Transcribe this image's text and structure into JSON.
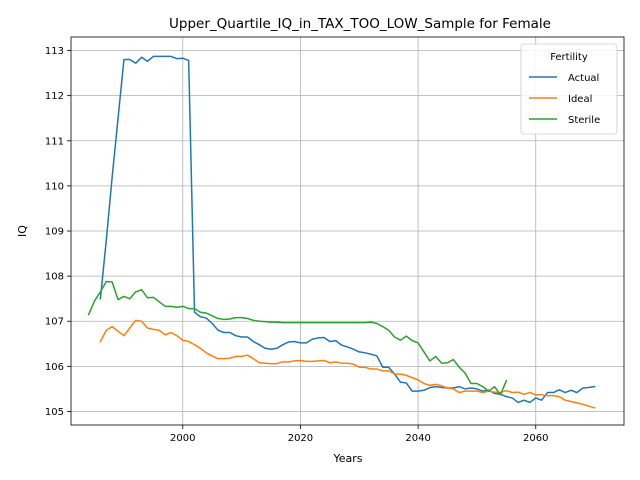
{
  "chart_data": {
    "type": "line",
    "title": "Upper_Quartile_IQ_in_TAX_TOO_LOW_Sample for Female",
    "xlabel": "Years",
    "ylabel": "IQ",
    "xlim": [
      1981,
      2075
    ],
    "ylim": [
      104.7,
      113.3
    ],
    "xticks": [
      1980,
      2000,
      2020,
      2040,
      2060
    ],
    "yticks": [
      105,
      106,
      107,
      108,
      109,
      110,
      111,
      112,
      113
    ],
    "grid": true,
    "legend": {
      "title": "Fertility",
      "placement": "top-right"
    },
    "series": [
      {
        "name": "Actual",
        "color": "#1f77b4",
        "points": [
          [
            1986,
            107.5
          ],
          [
            1987,
            108.8
          ],
          [
            1988,
            110.2
          ],
          [
            1989,
            111.5
          ],
          [
            1990,
            112.8
          ],
          [
            1991,
            112.8
          ],
          [
            1992,
            112.72
          ],
          [
            1993,
            112.85
          ],
          [
            1994,
            112.76
          ],
          [
            1995,
            112.87
          ],
          [
            1996,
            112.87
          ],
          [
            1997,
            112.87
          ],
          [
            1998,
            112.87
          ],
          [
            1999,
            112.82
          ],
          [
            2000,
            112.83
          ],
          [
            2001,
            112.78
          ],
          [
            2002,
            107.2
          ],
          [
            2003,
            107.1
          ],
          [
            2004,
            107.07
          ],
          [
            2005,
            106.95
          ],
          [
            2006,
            106.8
          ],
          [
            2007,
            106.75
          ],
          [
            2008,
            106.75
          ],
          [
            2009,
            106.68
          ],
          [
            2010,
            106.65
          ],
          [
            2011,
            106.65
          ],
          [
            2012,
            106.55
          ],
          [
            2013,
            106.48
          ],
          [
            2014,
            106.4
          ],
          [
            2015,
            106.38
          ],
          [
            2016,
            106.4
          ],
          [
            2017,
            106.48
          ],
          [
            2018,
            106.54
          ],
          [
            2019,
            106.55
          ],
          [
            2020,
            106.52
          ],
          [
            2021,
            106.52
          ],
          [
            2022,
            106.6
          ],
          [
            2023,
            106.63
          ],
          [
            2024,
            106.64
          ],
          [
            2025,
            106.55
          ],
          [
            2026,
            106.57
          ],
          [
            2027,
            106.47
          ],
          [
            2028,
            106.43
          ],
          [
            2029,
            106.38
          ],
          [
            2030,
            106.32
          ],
          [
            2031,
            106.3
          ],
          [
            2032,
            106.27
          ],
          [
            2033,
            106.23
          ],
          [
            2034,
            105.98
          ],
          [
            2035,
            105.98
          ],
          [
            2036,
            105.83
          ],
          [
            2037,
            105.65
          ],
          [
            2038,
            105.63
          ],
          [
            2039,
            105.45
          ],
          [
            2040,
            105.45
          ],
          [
            2041,
            105.47
          ],
          [
            2042,
            105.53
          ],
          [
            2043,
            105.55
          ],
          [
            2044,
            105.53
          ],
          [
            2045,
            105.52
          ],
          [
            2046,
            105.52
          ],
          [
            2047,
            105.55
          ],
          [
            2048,
            105.5
          ],
          [
            2049,
            105.52
          ],
          [
            2050,
            105.5
          ],
          [
            2051,
            105.45
          ],
          [
            2052,
            105.47
          ],
          [
            2053,
            105.4
          ],
          [
            2054,
            105.38
          ],
          [
            2055,
            105.33
          ],
          [
            2056,
            105.3
          ],
          [
            2057,
            105.2
          ],
          [
            2058,
            105.25
          ],
          [
            2059,
            105.2
          ],
          [
            2060,
            105.3
          ],
          [
            2061,
            105.25
          ],
          [
            2062,
            105.42
          ],
          [
            2063,
            105.42
          ],
          [
            2064,
            105.48
          ],
          [
            2065,
            105.42
          ],
          [
            2066,
            105.47
          ],
          [
            2067,
            105.42
          ],
          [
            2068,
            105.52
          ],
          [
            2069,
            105.53
          ],
          [
            2070,
            105.55
          ]
        ]
      },
      {
        "name": "Ideal",
        "color": "#ff7f0e",
        "points": [
          [
            1986,
            106.55
          ],
          [
            1987,
            106.8
          ],
          [
            1988,
            106.88
          ],
          [
            1989,
            106.78
          ],
          [
            1990,
            106.68
          ],
          [
            1991,
            106.85
          ],
          [
            1992,
            107.02
          ],
          [
            1993,
            107.0
          ],
          [
            1994,
            106.85
          ],
          [
            1995,
            106.82
          ],
          [
            1996,
            106.8
          ],
          [
            1997,
            106.7
          ],
          [
            1998,
            106.75
          ],
          [
            1999,
            106.68
          ],
          [
            2000,
            106.58
          ],
          [
            2001,
            106.55
          ],
          [
            2002,
            106.48
          ],
          [
            2003,
            106.4
          ],
          [
            2004,
            106.3
          ],
          [
            2005,
            106.23
          ],
          [
            2006,
            106.17
          ],
          [
            2007,
            106.17
          ],
          [
            2008,
            106.18
          ],
          [
            2009,
            106.22
          ],
          [
            2010,
            106.22
          ],
          [
            2011,
            106.25
          ],
          [
            2012,
            106.17
          ],
          [
            2013,
            106.08
          ],
          [
            2014,
            106.07
          ],
          [
            2015,
            106.06
          ],
          [
            2016,
            106.06
          ],
          [
            2017,
            106.1
          ],
          [
            2018,
            106.1
          ],
          [
            2019,
            106.12
          ],
          [
            2020,
            106.13
          ],
          [
            2021,
            106.11
          ],
          [
            2022,
            106.11
          ],
          [
            2023,
            106.12
          ],
          [
            2024,
            106.13
          ],
          [
            2025,
            106.08
          ],
          [
            2026,
            106.1
          ],
          [
            2027,
            106.07
          ],
          [
            2028,
            106.07
          ],
          [
            2029,
            106.05
          ],
          [
            2030,
            105.98
          ],
          [
            2031,
            105.98
          ],
          [
            2032,
            105.94
          ],
          [
            2033,
            105.94
          ],
          [
            2034,
            105.9
          ],
          [
            2035,
            105.9
          ],
          [
            2036,
            105.83
          ],
          [
            2037,
            105.83
          ],
          [
            2038,
            105.8
          ],
          [
            2039,
            105.75
          ],
          [
            2040,
            105.7
          ],
          [
            2041,
            105.62
          ],
          [
            2042,
            105.58
          ],
          [
            2043,
            105.6
          ],
          [
            2044,
            105.57
          ],
          [
            2045,
            105.52
          ],
          [
            2046,
            105.5
          ],
          [
            2047,
            105.42
          ],
          [
            2048,
            105.45
          ],
          [
            2049,
            105.45
          ],
          [
            2050,
            105.45
          ],
          [
            2051,
            105.42
          ],
          [
            2052,
            105.45
          ],
          [
            2053,
            105.43
          ],
          [
            2054,
            105.42
          ],
          [
            2055,
            105.46
          ],
          [
            2056,
            105.42
          ],
          [
            2057,
            105.43
          ],
          [
            2058,
            105.38
          ],
          [
            2059,
            105.42
          ],
          [
            2060,
            105.37
          ],
          [
            2061,
            105.37
          ],
          [
            2062,
            105.35
          ],
          [
            2063,
            105.35
          ],
          [
            2064,
            105.33
          ],
          [
            2065,
            105.25
          ],
          [
            2066,
            105.22
          ],
          [
            2067,
            105.19
          ],
          [
            2068,
            105.16
          ],
          [
            2069,
            105.12
          ],
          [
            2070,
            105.08
          ]
        ]
      },
      {
        "name": "Sterile",
        "color": "#2ca02c",
        "points": [
          [
            1984,
            107.15
          ],
          [
            1985,
            107.45
          ],
          [
            1986,
            107.65
          ],
          [
            1987,
            107.88
          ],
          [
            1988,
            107.87
          ],
          [
            1989,
            107.48
          ],
          [
            1990,
            107.55
          ],
          [
            1991,
            107.5
          ],
          [
            1992,
            107.65
          ],
          [
            1993,
            107.7
          ],
          [
            1994,
            107.52
          ],
          [
            1995,
            107.53
          ],
          [
            1996,
            107.43
          ],
          [
            1997,
            107.33
          ],
          [
            1998,
            107.33
          ],
          [
            1999,
            107.31
          ],
          [
            2000,
            107.33
          ],
          [
            2001,
            107.28
          ],
          [
            2002,
            107.28
          ],
          [
            2003,
            107.2
          ],
          [
            2004,
            107.18
          ],
          [
            2005,
            107.12
          ],
          [
            2006,
            107.06
          ],
          [
            2007,
            107.04
          ],
          [
            2008,
            107.05
          ],
          [
            2009,
            107.08
          ],
          [
            2010,
            107.08
          ],
          [
            2011,
            107.06
          ],
          [
            2012,
            107.02
          ],
          [
            2013,
            107.0
          ],
          [
            2014,
            106.99
          ],
          [
            2015,
            106.98
          ],
          [
            2016,
            106.98
          ],
          [
            2017,
            106.97
          ],
          [
            2018,
            106.97
          ],
          [
            2019,
            106.97
          ],
          [
            2020,
            106.97
          ],
          [
            2021,
            106.97
          ],
          [
            2022,
            106.97
          ],
          [
            2023,
            106.97
          ],
          [
            2024,
            106.97
          ],
          [
            2025,
            106.97
          ],
          [
            2026,
            106.97
          ],
          [
            2027,
            106.97
          ],
          [
            2028,
            106.97
          ],
          [
            2029,
            106.97
          ],
          [
            2030,
            106.97
          ],
          [
            2031,
            106.97
          ],
          [
            2032,
            106.98
          ],
          [
            2033,
            106.95
          ],
          [
            2034,
            106.88
          ],
          [
            2035,
            106.8
          ],
          [
            2036,
            106.65
          ],
          [
            2037,
            106.58
          ],
          [
            2038,
            106.67
          ],
          [
            2039,
            106.57
          ],
          [
            2040,
            106.52
          ],
          [
            2041,
            106.32
          ],
          [
            2042,
            106.12
          ],
          [
            2043,
            106.22
          ],
          [
            2044,
            106.07
          ],
          [
            2045,
            106.08
          ],
          [
            2046,
            106.15
          ],
          [
            2047,
            105.98
          ],
          [
            2048,
            105.85
          ],
          [
            2049,
            105.62
          ],
          [
            2050,
            105.62
          ],
          [
            2051,
            105.55
          ],
          [
            2052,
            105.45
          ],
          [
            2053,
            105.55
          ],
          [
            2054,
            105.37
          ],
          [
            2055,
            105.68
          ]
        ]
      }
    ]
  }
}
